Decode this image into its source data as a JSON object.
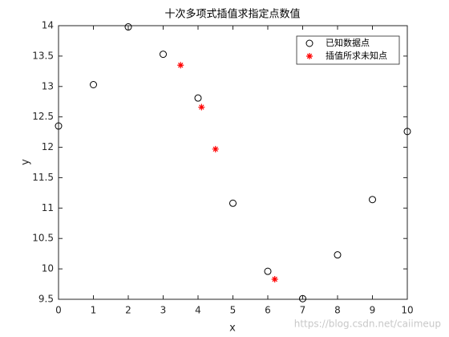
{
  "chart_data": {
    "type": "scatter",
    "title": "十次多项式插值求指定点数值",
    "x_label": "x",
    "y_label": "y",
    "xlim": [
      0,
      10
    ],
    "xticks": [
      0,
      1,
      2,
      3,
      4,
      5,
      6,
      7,
      8,
      9,
      10
    ],
    "ylim": [
      9.5,
      14
    ],
    "yticks": [
      9.5,
      10,
      10.5,
      11,
      11.5,
      12,
      12.5,
      13,
      13.5,
      14
    ],
    "legend": "top-right",
    "series": [
      {
        "name": "已知数据点",
        "color": "#000000",
        "marker": "circle",
        "x": [
          0,
          1,
          2,
          3,
          4,
          5,
          6,
          7,
          8,
          9,
          10
        ],
        "values": [
          12.35,
          13.03,
          13.98,
          13.53,
          12.81,
          11.08,
          9.96,
          9.51,
          10.23,
          11.14,
          12.26
        ]
      },
      {
        "name": "插值所求未知点",
        "color": "#ff0000",
        "marker": "asterisk",
        "x": [
          3.5,
          4.1,
          4.5,
          6.2
        ],
        "values": [
          13.35,
          12.66,
          11.97,
          9.83
        ]
      }
    ],
    "watermark": "https://blog.csdn.net/caiimeup"
  }
}
